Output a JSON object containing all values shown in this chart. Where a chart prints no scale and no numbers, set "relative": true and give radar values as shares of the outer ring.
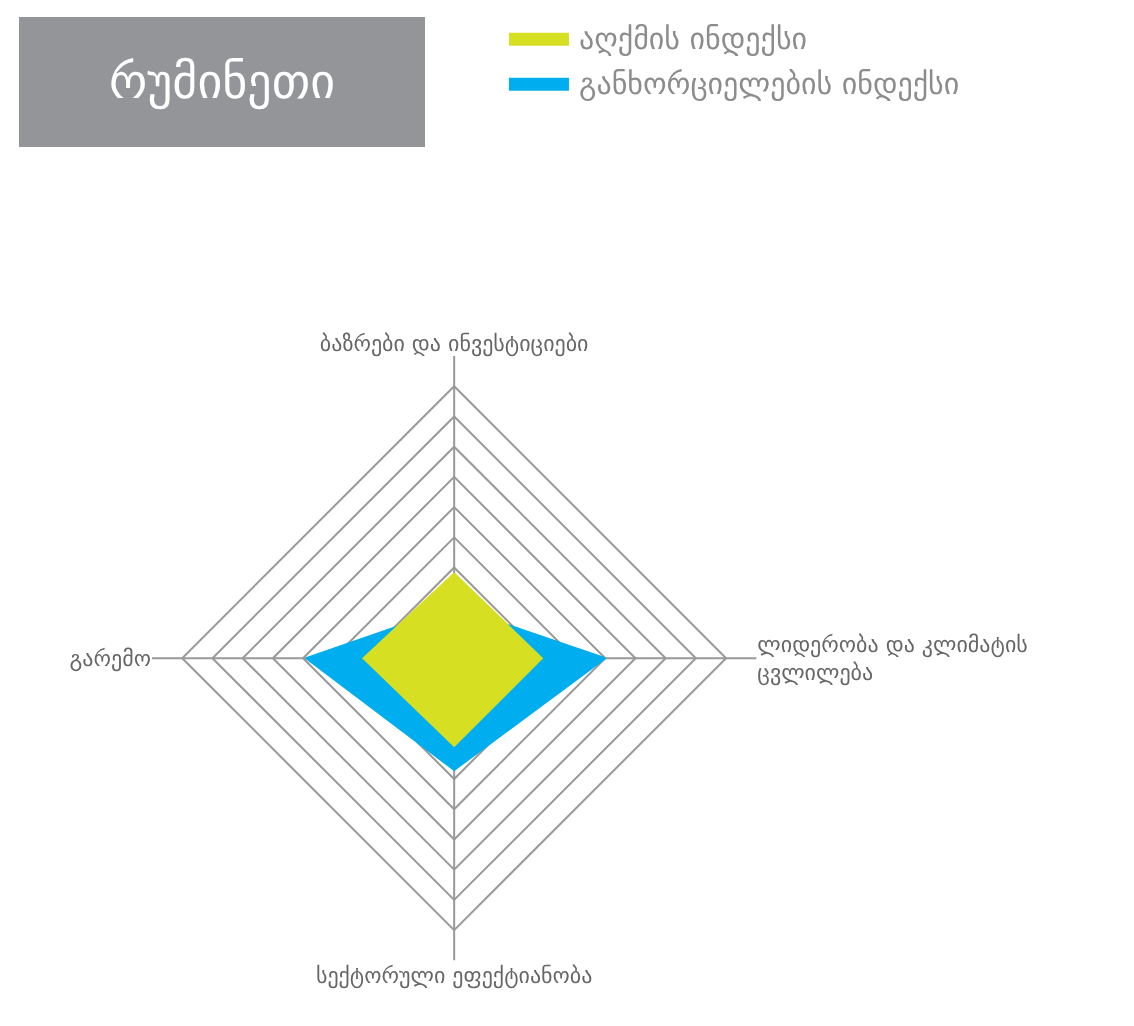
{
  "chart_data": {
    "type": "radar",
    "title": "რუმინეთი",
    "relative": true,
    "grid": true,
    "legend": "top right",
    "categories": [
      "ბაზრები და ინვესტიციები",
      "ლიდერობა და კლიმატის\nცვლილება",
      "სექტორული ეფექტიანობა",
      "გარემო"
    ],
    "series": [
      {
        "name": "განხორციელების ინდექსი",
        "color": "#00aeef",
        "values": [
          0.17,
          0.5,
          0.37,
          0.49
        ]
      },
      {
        "name": "აღქმის ინდექსი",
        "color": "#d7df23",
        "values": [
          0.28,
          0.29,
          0.29,
          0.3
        ]
      }
    ]
  }
}
